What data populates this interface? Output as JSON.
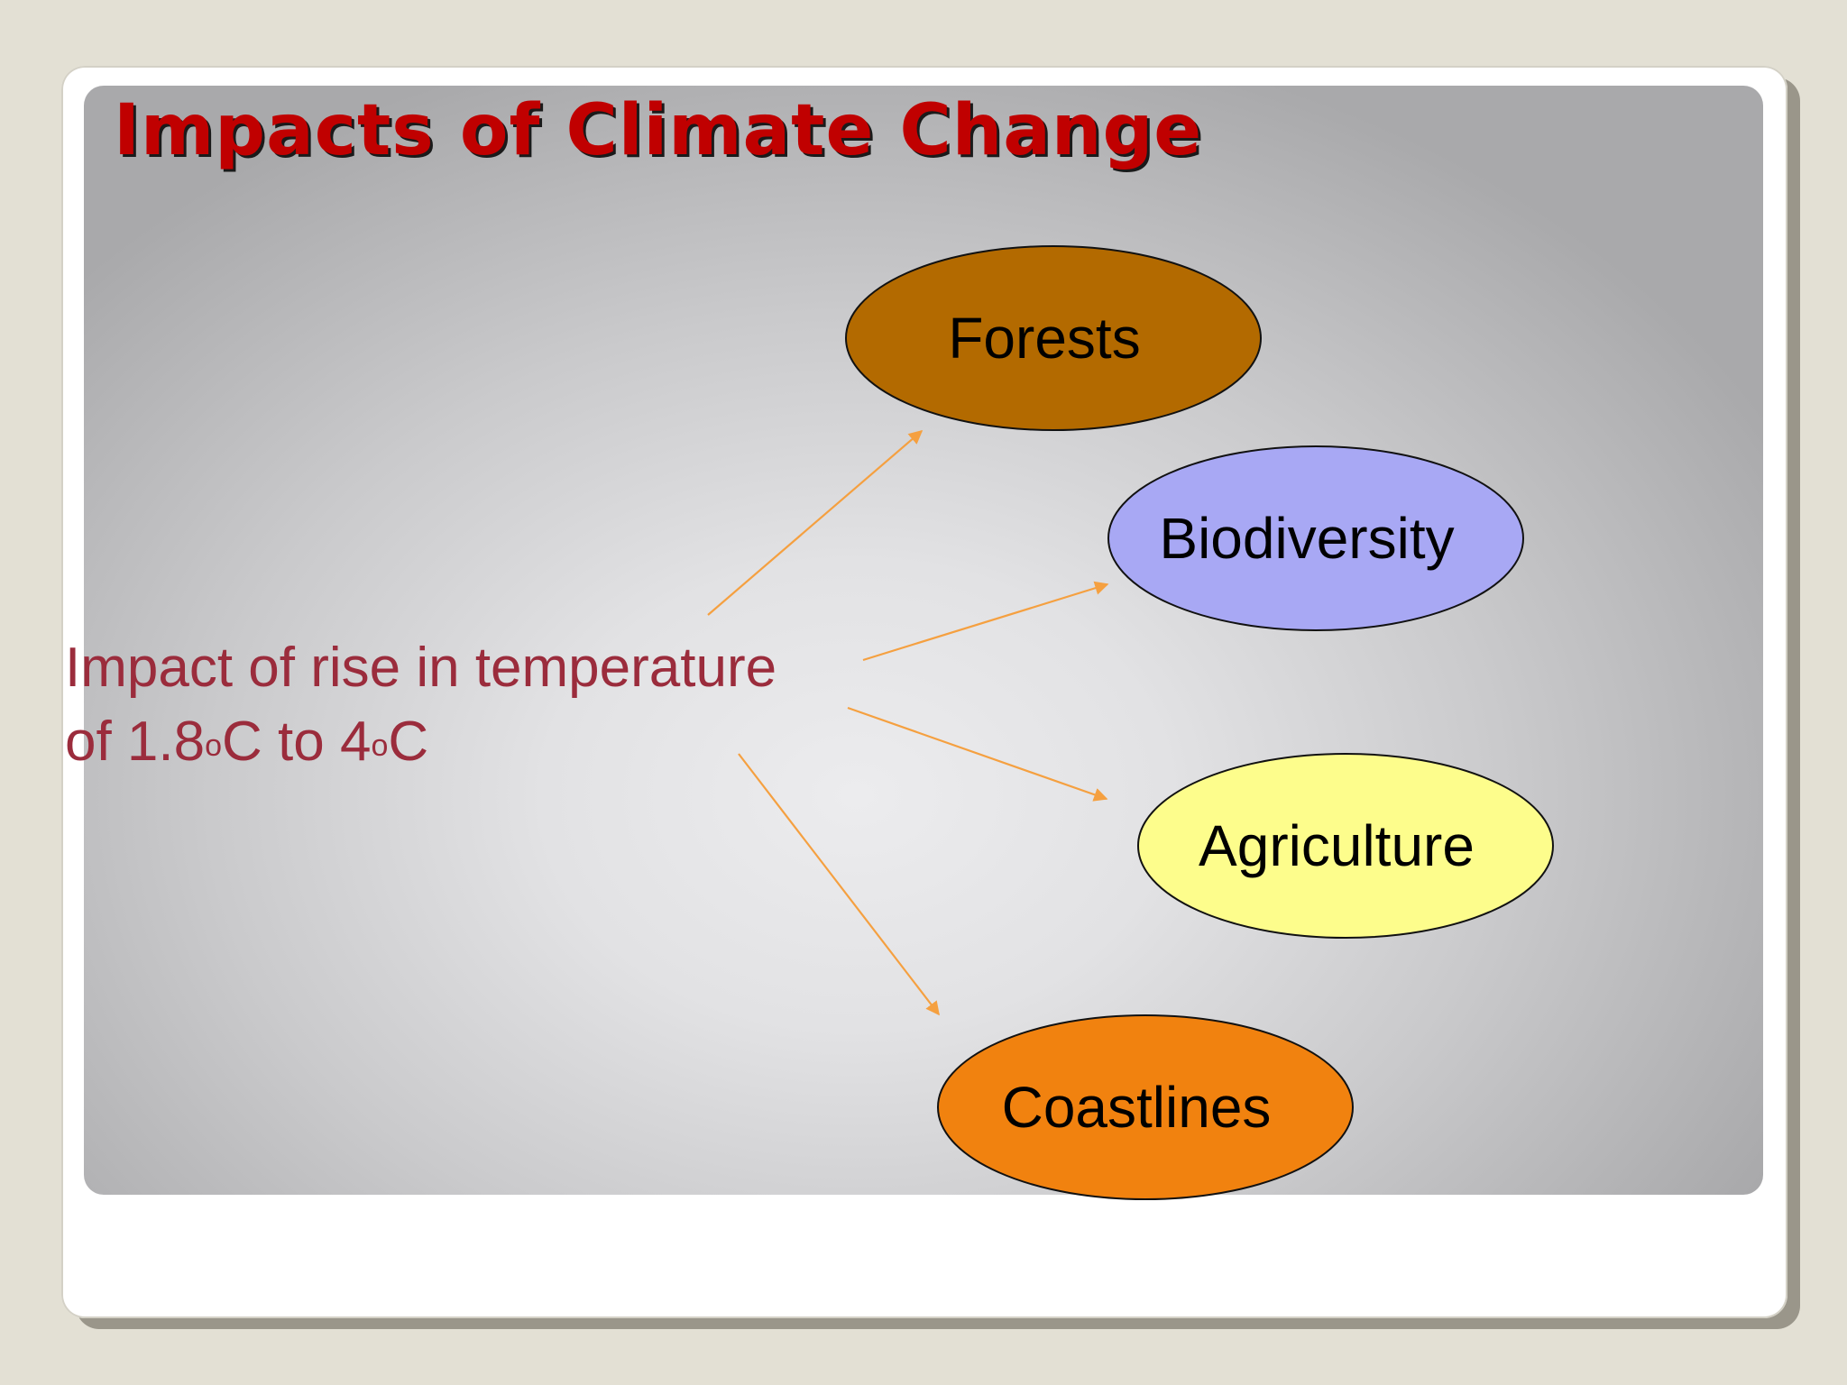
{
  "slide": {
    "title": "Impacts of Climate Change",
    "source": {
      "line1": "Impact of rise in temperature",
      "line2_prefix": "of 1.8",
      "degree_1": "o",
      "unit_mid": "C to 4",
      "degree_2": "o",
      "unit_end": "C"
    }
  },
  "diagram": {
    "nodes": [
      {
        "id": "forests",
        "label": "Forests",
        "color": "#b36a00"
      },
      {
        "id": "biodiversity",
        "label": "Biodiversity",
        "color": "#a8a8f4"
      },
      {
        "id": "agriculture",
        "label": "Agriculture",
        "color": "#fdfd8c"
      },
      {
        "id": "coastlines",
        "label": "Coastlines",
        "color": "#f1820f"
      }
    ],
    "arrow_color": "#f5a040",
    "edges": [
      {
        "from": "source",
        "to": "forests"
      },
      {
        "from": "source",
        "to": "biodiversity"
      },
      {
        "from": "source",
        "to": "agriculture"
      },
      {
        "from": "source",
        "to": "coastlines"
      }
    ]
  },
  "colors": {
    "title": "#c00000",
    "source_text": "#9b2c3c",
    "background": "#e3e0d4"
  }
}
